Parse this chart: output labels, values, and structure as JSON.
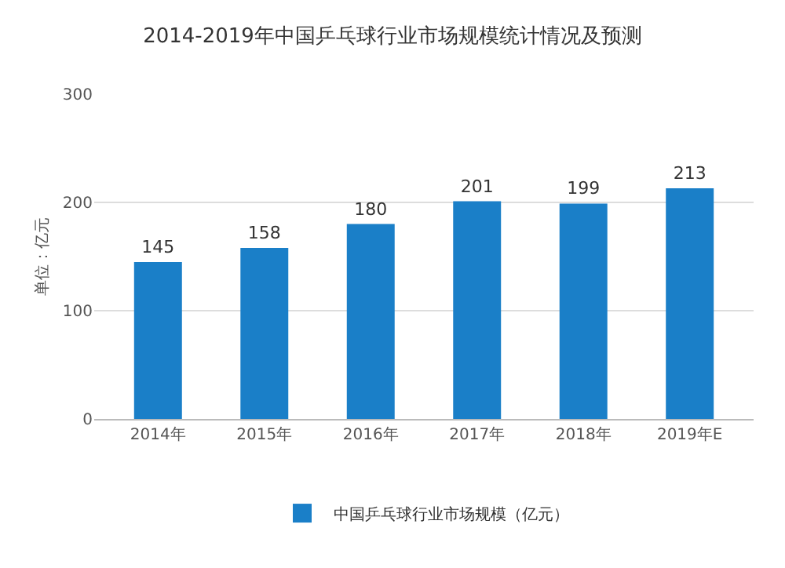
{
  "chart_data": {
    "type": "bar",
    "title": "2014-2019年中国乒乓球行业市场规模统计情况及预测",
    "ylabel": "单位：亿元",
    "categories": [
      "2014年",
      "2015年",
      "2016年",
      "2017年",
      "2018年",
      "2019年E"
    ],
    "series": [
      {
        "name": "中国乒乓球行业市场规模（亿元）",
        "color": "#1a7fc8",
        "values": [
          145,
          158,
          180,
          201,
          199,
          213
        ]
      }
    ],
    "ylim": [
      0,
      300
    ],
    "yticks": [
      0,
      100,
      200,
      300
    ],
    "grid": "y",
    "legend": "bottom",
    "data_labels": true
  }
}
